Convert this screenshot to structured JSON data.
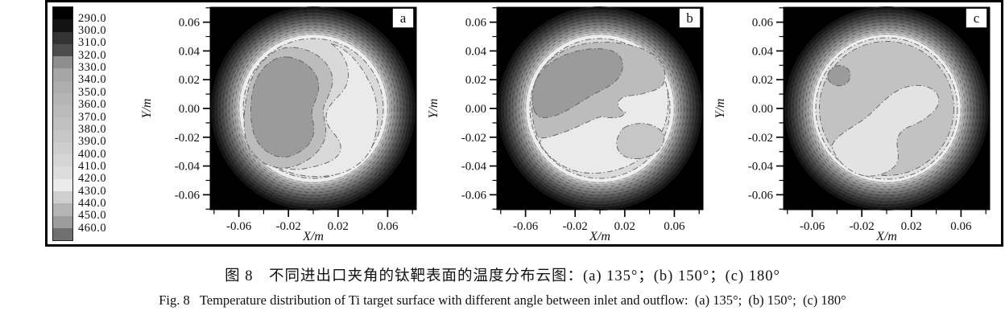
{
  "figure": {
    "caption_zh": "图 8　不同进出口夹角的钛靶表面的温度分布云图：(a) 135°；(b) 150°；(c) 180°",
    "caption_en": "Fig. 8   Temperature distribution of Ti target surface with different angle between inlet and outflow:  (a) 135°;  (b) 150°;  (c) 180°"
  },
  "legend": {
    "labels": [
      "290.0",
      "300.0",
      "310.0",
      "320.0",
      "330.0",
      "340.0",
      "350.0",
      "360.0",
      "370.0",
      "380.0",
      "390.0",
      "400.0",
      "410.0",
      "420.0",
      "430.0",
      "440.0",
      "450.0",
      "460.0"
    ],
    "colors": [
      "#000000",
      "#131313",
      "#333333",
      "#4d4d4d",
      "#8e8e8e",
      "#a6a6a6",
      "#aeaeae",
      "#b5b5b5",
      "#bbbbbb",
      "#c1c1c1",
      "#c7c7c7",
      "#cecece",
      "#d5d5d5",
      "#dddddd",
      "#ebebeb",
      "#cfcfcf",
      "#b5b5b5",
      "#9c9c9c",
      "#6f6f6f"
    ]
  },
  "axes": {
    "x_label": "X/m",
    "y_label": "Y/m",
    "x_tick_labels": [
      "-0.06",
      "-0.02",
      "0.02",
      "0.06"
    ],
    "y_tick_labels": [
      "0.06",
      "0.04",
      "0.02",
      "0.00",
      "-0.02",
      "-0.04",
      "-0.06"
    ]
  },
  "panels": [
    {
      "letter": "a",
      "angle": "135°"
    },
    {
      "letter": "b",
      "angle": "150°"
    },
    {
      "letter": "c",
      "angle": "180°"
    }
  ],
  "colors": {
    "plot_background": "#000000",
    "hot_blob": "#9b9b9b",
    "medium_level": "#bcbcbc",
    "light_level": "#d9d9d9",
    "lightest_level": "#eaeaea",
    "white_ring": "#eeeeee"
  },
  "chart_data": [
    {
      "type": "heatmap",
      "panel": "a",
      "angle_deg": 135,
      "title": "",
      "xlabel": "X/m",
      "ylabel": "Y/m",
      "xlim": [
        -0.083,
        0.083
      ],
      "ylim": [
        -0.0705,
        0.0705
      ],
      "x_ticks": [
        -0.06,
        -0.02,
        0.02,
        0.06
      ],
      "y_ticks": [
        0.06,
        0.04,
        0.02,
        0.0,
        -0.02,
        -0.04,
        -0.06
      ],
      "contour_levels": [
        290,
        300,
        310,
        320,
        330,
        340,
        350,
        360,
        370,
        380,
        390,
        400,
        410,
        420,
        430,
        440,
        450,
        460
      ],
      "legend_position": "left",
      "grid": false,
      "description": "Circular Ti target on black (≈290) background; temperature rises inward through dense rim contours. Large hottest region (≈450–460) left of center; S-shaped cooler (≈410–430) swath over the right half.",
      "hot_spot_xy": [
        -0.03,
        0.005
      ]
    },
    {
      "type": "heatmap",
      "panel": "b",
      "angle_deg": 150,
      "title": "",
      "xlabel": "X/m",
      "ylabel": "Y/m",
      "xlim": [
        -0.083,
        0.083
      ],
      "ylim": [
        -0.0705,
        0.0705
      ],
      "x_ticks": [
        -0.06,
        -0.02,
        0.02,
        0.06
      ],
      "y_ticks": [
        0.06,
        0.04,
        0.02,
        0.0,
        -0.02,
        -0.04,
        -0.06
      ],
      "contour_levels": [
        290,
        300,
        310,
        320,
        330,
        340,
        350,
        360,
        370,
        380,
        390,
        400,
        410,
        420,
        430,
        440,
        450,
        460
      ],
      "legend_position": "left",
      "grid": false,
      "description": "Elongated hottest region (≈450–460) in the upper-left quadrant; cooler (≈410–430) swath sweeps from lower left through the center to the right edge; warm pocket at lower right.",
      "hot_spot_xy": [
        -0.025,
        0.03
      ]
    },
    {
      "type": "heatmap",
      "panel": "c",
      "angle_deg": 180,
      "title": "",
      "xlabel": "X/m",
      "ylabel": "Y/m",
      "xlim": [
        -0.083,
        0.083
      ],
      "ylim": [
        -0.0705,
        0.0705
      ],
      "x_ticks": [
        -0.06,
        -0.02,
        0.02,
        0.06
      ],
      "y_ticks": [
        0.06,
        0.04,
        0.02,
        0.0,
        -0.02,
        -0.04,
        -0.06
      ],
      "contour_levels": [
        290,
        300,
        310,
        320,
        330,
        340,
        350,
        360,
        370,
        380,
        390,
        400,
        410,
        420,
        430,
        440,
        450,
        460
      ],
      "legend_position": "left",
      "grid": false,
      "description": "Nearly uniform warm surface (≈440–450) with one small hottest spot (≈450–460) near (-0.035, 0.022); cooler (≈420–430) irregular region in the lower center.",
      "hot_spot_xy": [
        -0.035,
        0.022
      ]
    }
  ]
}
